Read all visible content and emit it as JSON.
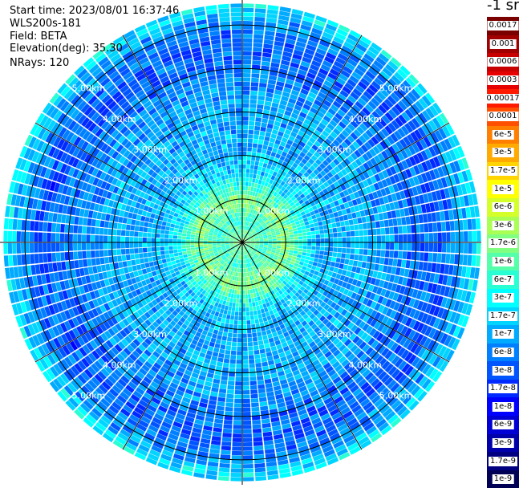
{
  "info": {
    "start_time": "Start time: 2023/08/01 16:37:46",
    "instrument": "WLS200s-181",
    "field": "Field: BETA",
    "elevation": "Elevation(deg): 35.30",
    "nrays": "NRays: 120"
  },
  "colorbar": {
    "unit_label": "-1 sr",
    "levels": [
      {
        "label": "0.0017",
        "color": "#7a0000"
      },
      {
        "label": "0.001",
        "color": "#a10000"
      },
      {
        "label": "0.0006",
        "color": "#c80000"
      },
      {
        "label": "0.0003",
        "color": "#e60000"
      },
      {
        "label": "0.00017",
        "color": "#ff1a00"
      },
      {
        "label": "0.0001",
        "color": "#ff5000"
      },
      {
        "label": "6e-5",
        "color": "#ff8000"
      },
      {
        "label": "3e-5",
        "color": "#ffaa00"
      },
      {
        "label": "1.7e-5",
        "color": "#ffd400"
      },
      {
        "label": "1e-5",
        "color": "#ffff00"
      },
      {
        "label": "6e-6",
        "color": "#d4ff2a"
      },
      {
        "label": "3e-6",
        "color": "#aaff55"
      },
      {
        "label": "1.7e-6",
        "color": "#80ff80"
      },
      {
        "label": "1e-6",
        "color": "#55ffaa"
      },
      {
        "label": "6e-7",
        "color": "#2affd4"
      },
      {
        "label": "3e-7",
        "color": "#00ffff"
      },
      {
        "label": "1.7e-7",
        "color": "#00d4ff"
      },
      {
        "label": "1e-7",
        "color": "#00aaff"
      },
      {
        "label": "6e-8",
        "color": "#0080ff"
      },
      {
        "label": "3e-8",
        "color": "#0055ff"
      },
      {
        "label": "1.7e-8",
        "color": "#002aff"
      },
      {
        "label": "1e-8",
        "color": "#0000ff"
      },
      {
        "label": "6e-9",
        "color": "#0000d4"
      },
      {
        "label": "3e-9",
        "color": "#0000aa"
      },
      {
        "label": "1.7e-9",
        "color": "#000080"
      },
      {
        "label": "1e-9",
        "color": "#000055"
      }
    ]
  },
  "chart_data": {
    "type": "heatmap",
    "projection": "polar-ppi",
    "field": "BETA",
    "nrays": 120,
    "max_range_km": 5.5,
    "range_rings_km": [
      1,
      2,
      3,
      4,
      5
    ],
    "ring_labels": [
      "1.00km",
      "2.00km",
      "3.00km",
      "4.00km",
      "5.00km"
    ],
    "spoke_step_deg": 30,
    "range_profile": [
      {
        "range_km": 0.0,
        "level": "1.7e-6"
      },
      {
        "range_km": 0.5,
        "level": "6e-7"
      },
      {
        "range_km": 1.0,
        "level": "1.7e-6"
      },
      {
        "range_km": 1.6,
        "level": "1.7e-7"
      },
      {
        "range_km": 2.2,
        "level": "1e-7"
      },
      {
        "range_km": 3.0,
        "level": "1e-7"
      },
      {
        "range_km": 3.8,
        "level": "6e-8"
      },
      {
        "range_km": 4.6,
        "level": "3e-8"
      },
      {
        "range_km": 5.2,
        "level": "1e-7"
      },
      {
        "range_km": 5.5,
        "level": "3e-7"
      }
    ]
  }
}
